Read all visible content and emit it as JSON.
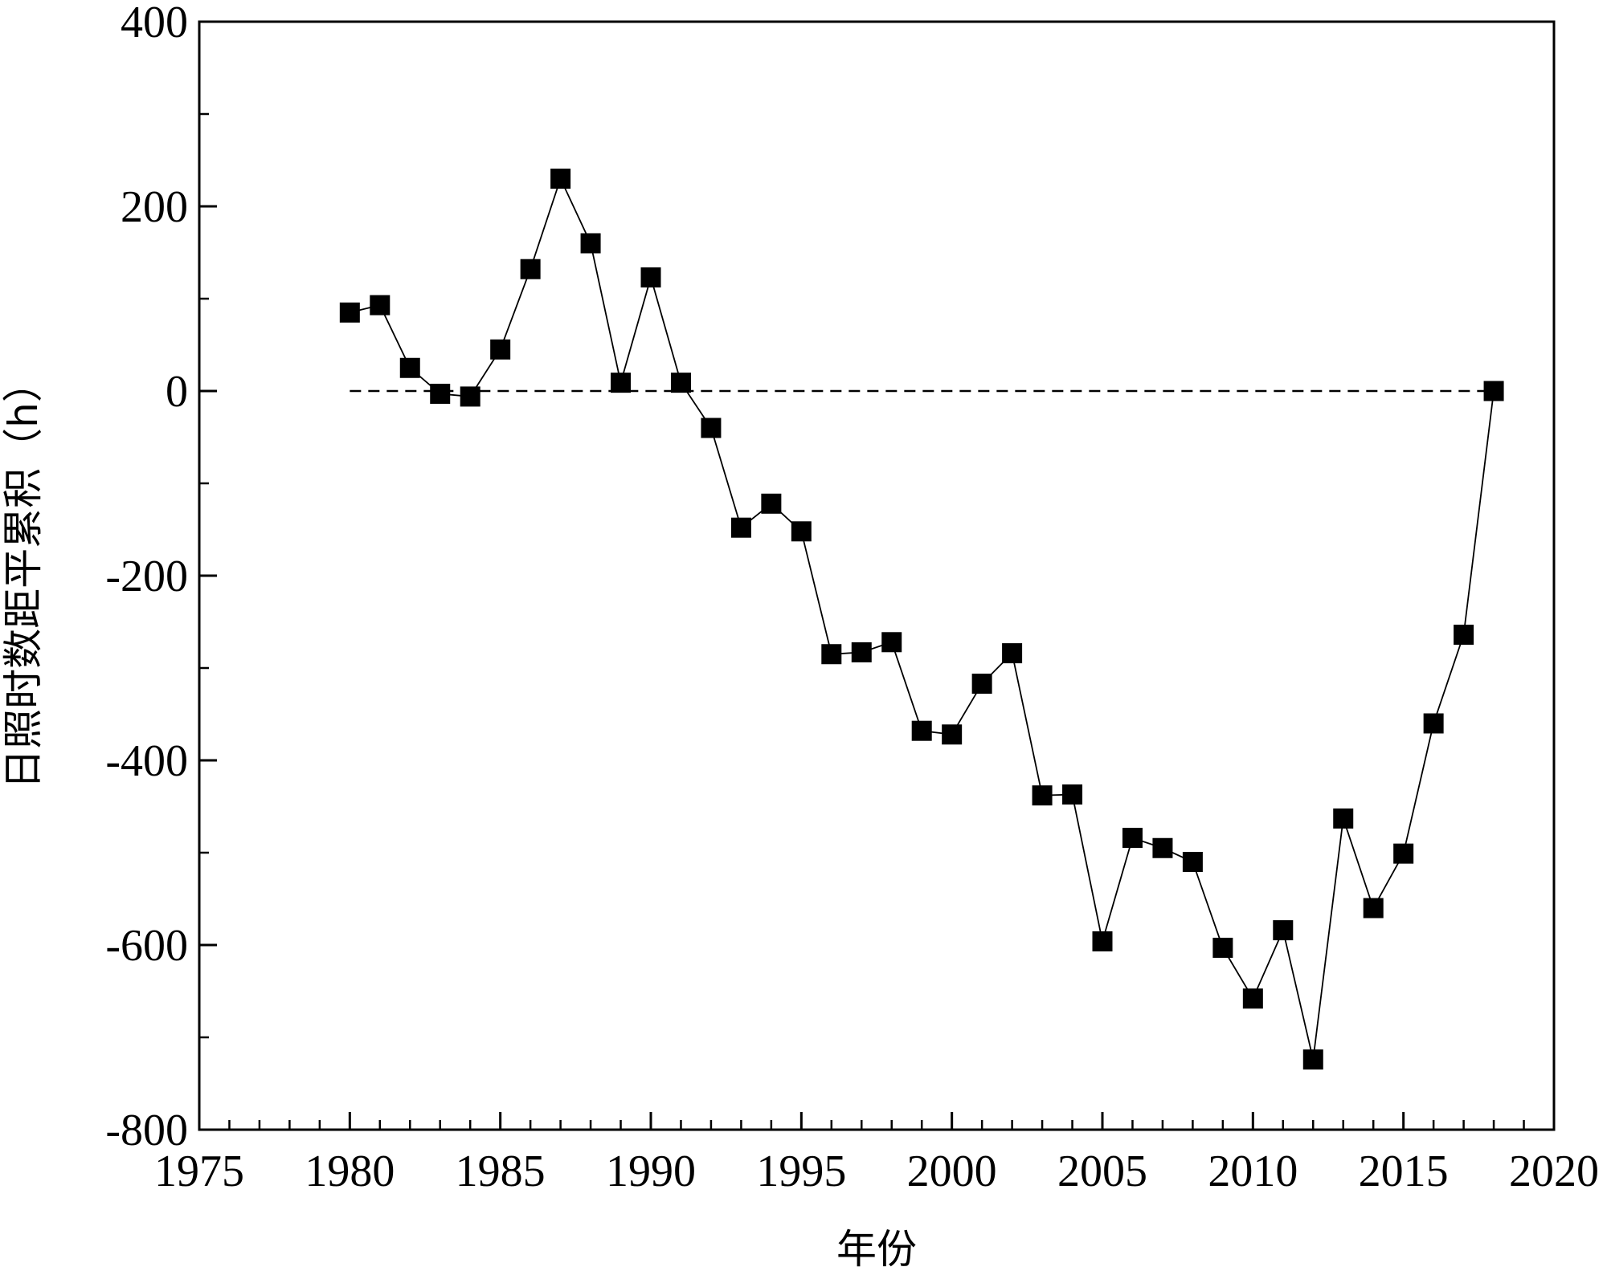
{
  "chart_data": {
    "type": "line",
    "title": "",
    "xlabel": "年份",
    "ylabel": "日照时数距平累积（h）",
    "xlim": [
      1975,
      2020
    ],
    "ylim": [
      -800,
      400
    ],
    "x_major_ticks": [
      1975,
      1980,
      1985,
      1990,
      1995,
      2000,
      2005,
      2010,
      2015,
      2020
    ],
    "y_major_ticks": [
      -800,
      -600,
      -400,
      -200,
      0,
      200,
      400
    ],
    "y_tick_labels": [
      "-800",
      "-600",
      "-400",
      "-200",
      "0",
      "200",
      "400"
    ],
    "x_tick_labels": [
      "1975",
      "1980",
      "1985",
      "1990",
      "1995",
      "2000",
      "2005",
      "2010",
      "2015",
      "2020"
    ],
    "reference_line": {
      "y": 0,
      "x_start": 1980,
      "x_end": 2018,
      "style": "dashed"
    },
    "series": [
      {
        "marker": "square",
        "color": "#000000",
        "x": [
          1980,
          1981,
          1982,
          1983,
          1984,
          1985,
          1986,
          1987,
          1988,
          1989,
          1990,
          1991,
          1992,
          1993,
          1994,
          1995,
          1996,
          1997,
          1998,
          1999,
          2000,
          2001,
          2002,
          2003,
          2004,
          2005,
          2006,
          2007,
          2008,
          2009,
          2010,
          2011,
          2012,
          2013,
          2014,
          2015,
          2016,
          2017,
          2018
        ],
        "y": [
          85,
          93,
          25,
          -3,
          -6,
          45,
          132,
          230,
          160,
          9,
          123,
          9,
          -40,
          -148,
          -122,
          -152,
          -285,
          -283,
          -272,
          -368,
          -372,
          -317,
          -284,
          -438,
          -437,
          -596,
          -484,
          -495,
          -510,
          -603,
          -658,
          -584,
          -724,
          -463,
          -560,
          -501,
          -360,
          -264,
          0
        ]
      }
    ],
    "grid": false,
    "legend": "none"
  }
}
